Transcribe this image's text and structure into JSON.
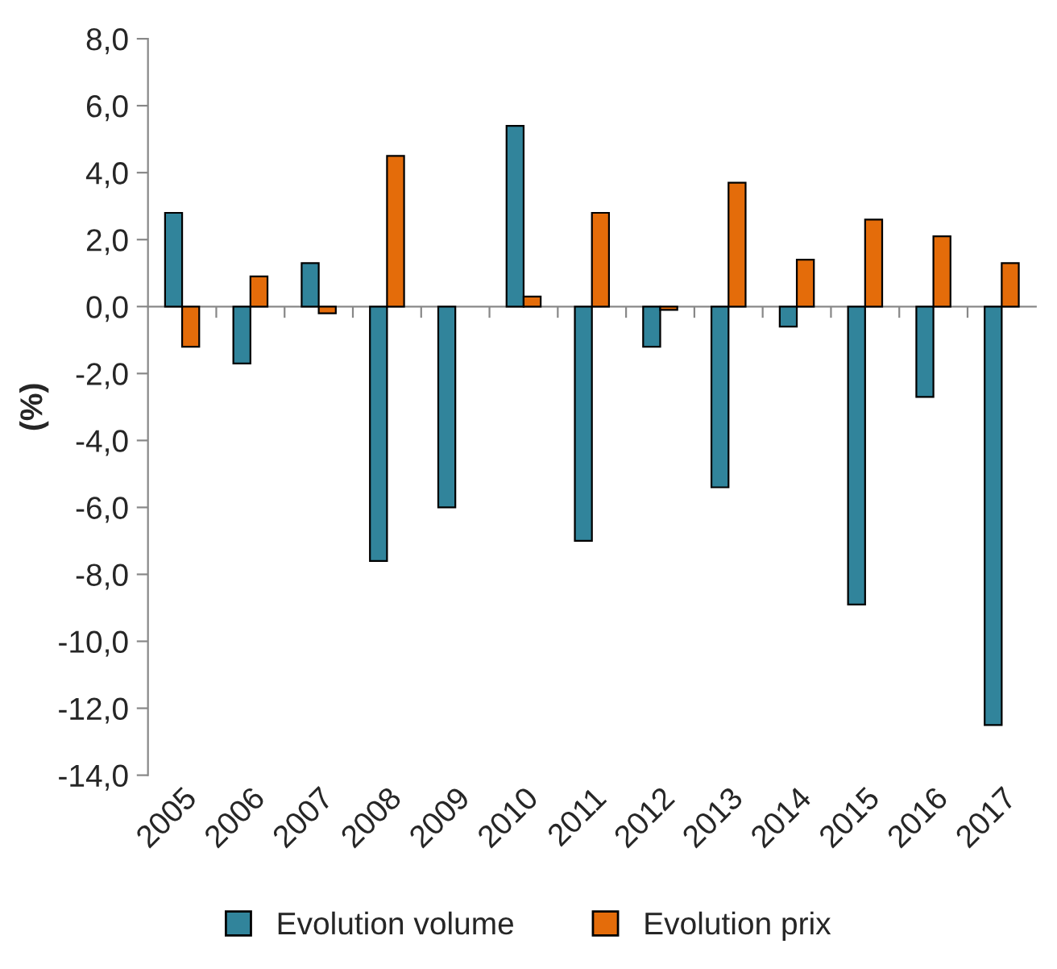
{
  "chart_data": {
    "type": "bar",
    "ylabel": "(%)",
    "categories": [
      "2005",
      "2006",
      "2007",
      "2008",
      "2009",
      "2010",
      "2011",
      "2012",
      "2013",
      "2014",
      "2015",
      "2016",
      "2017"
    ],
    "series": [
      {
        "name": "Evolution volume",
        "color": "#31849b",
        "values": [
          2.8,
          -1.7,
          1.3,
          -7.6,
          -6.0,
          5.4,
          -7.0,
          -1.2,
          -5.4,
          -0.6,
          -8.9,
          -2.7,
          -12.5
        ]
      },
      {
        "name": "Evolution prix",
        "color": "#e46c0a",
        "values": [
          -1.2,
          0.9,
          -0.2,
          4.5,
          null,
          0.3,
          2.8,
          -0.1,
          3.7,
          1.4,
          2.6,
          2.1,
          1.3
        ]
      }
    ],
    "ylim": [
      -14,
      8
    ],
    "yticks": [
      {
        "value": 8,
        "label": "8,0"
      },
      {
        "value": 6,
        "label": "6,0"
      },
      {
        "value": 4,
        "label": "4,0"
      },
      {
        "value": 2,
        "label": "2,0"
      },
      {
        "value": 0,
        "label": "0,0"
      },
      {
        "value": -2,
        "label": "-2,0"
      },
      {
        "value": -4,
        "label": "-4,0"
      },
      {
        "value": -6,
        "label": "-6,0"
      },
      {
        "value": -8,
        "label": "-8,0"
      },
      {
        "value": -10,
        "label": "-10,0"
      },
      {
        "value": -12,
        "label": "-12,0"
      },
      {
        "value": -14,
        "label": "-14,0"
      }
    ],
    "legend": "bottom"
  }
}
